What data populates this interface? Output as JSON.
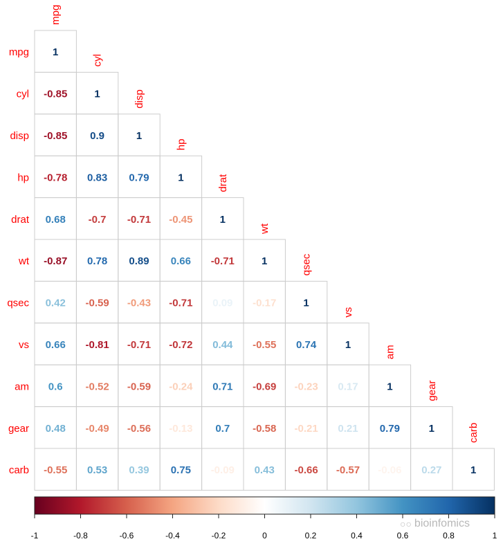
{
  "chart_data": {
    "type": "heatmap",
    "title": "",
    "variables": [
      "mpg",
      "cyl",
      "disp",
      "hp",
      "drat",
      "wt",
      "qsec",
      "vs",
      "am",
      "gear",
      "carb"
    ],
    "matrix": [
      [
        "1"
      ],
      [
        "-0.85",
        "1"
      ],
      [
        "-0.85",
        "0.9",
        "1"
      ],
      [
        "-0.78",
        "0.83",
        "0.79",
        "1"
      ],
      [
        "0.68",
        "-0.7",
        "-0.71",
        "-0.45",
        "1"
      ],
      [
        "-0.87",
        "0.78",
        "0.89",
        "0.66",
        "-0.71",
        "1"
      ],
      [
        "0.42",
        "-0.59",
        "-0.43",
        "-0.71",
        "0.09",
        "-0.17",
        "1"
      ],
      [
        "0.66",
        "-0.81",
        "-0.71",
        "-0.72",
        "0.44",
        "-0.55",
        "0.74",
        "1"
      ],
      [
        "0.6",
        "-0.52",
        "-0.59",
        "-0.24",
        "0.71",
        "-0.69",
        "-0.23",
        "0.17",
        "1"
      ],
      [
        "0.48",
        "-0.49",
        "-0.56",
        "-0.13",
        "0.7",
        "-0.58",
        "-0.21",
        "0.21",
        "0.79",
        "1"
      ],
      [
        "-0.55",
        "0.53",
        "0.39",
        "0.75",
        "-0.09",
        "0.43",
        "-0.66",
        "-0.57",
        "-0.06",
        "0.27",
        "1"
      ]
    ],
    "lower_triangle": true,
    "colorbar": {
      "range": [
        -1,
        1
      ],
      "ticks": [
        "-1",
        "-0.8",
        "-0.6",
        "-0.4",
        "-0.2",
        "0",
        "0.2",
        "0.4",
        "0.6",
        "0.8",
        "1"
      ],
      "stops": [
        "#67001F",
        "#B2182B",
        "#D6604D",
        "#F4A582",
        "#FDDBC7",
        "#FFFFFF",
        "#D1E5F0",
        "#92C5DE",
        "#4393C3",
        "#2166AC",
        "#053061"
      ]
    },
    "label_color": "#ff0000",
    "grid_color": "#cccccc"
  },
  "watermark": {
    "text": "bioinfomics",
    "icon": "wechat-bubble-icon"
  }
}
